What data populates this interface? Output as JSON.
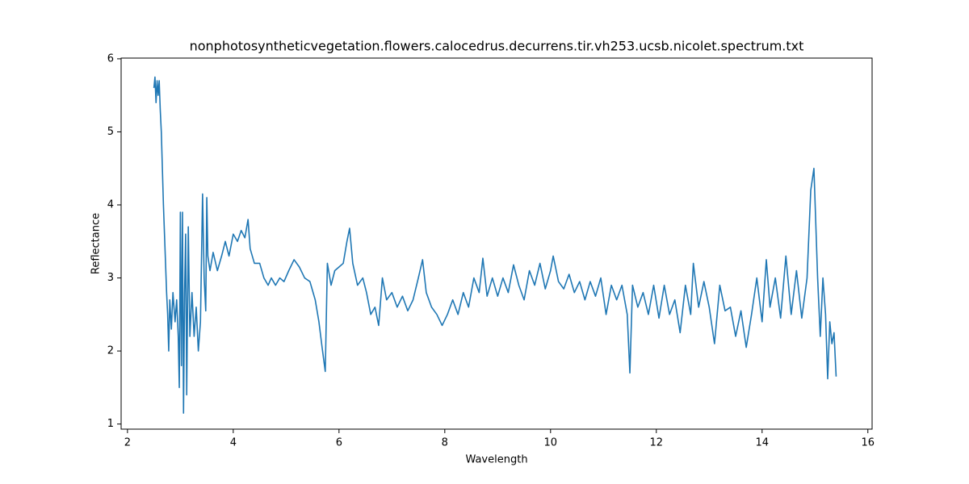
{
  "chart_data": {
    "type": "line",
    "title": "nonphotosyntheticvegetation.flowers.calocedrus.decurrens.tir.vh253.ucsb.nicolet.spectrum.txt",
    "xlabel": "Wavelength",
    "ylabel": "Reflectance",
    "xlim": [
      1.88,
      16.08
    ],
    "ylim": [
      0.93,
      6.01
    ],
    "xticks": [
      2,
      4,
      6,
      8,
      10,
      12,
      14,
      16
    ],
    "yticks": [
      1,
      2,
      3,
      4,
      5,
      6
    ],
    "grid": false,
    "series": [
      {
        "color": "#1f77b4",
        "x": [
          2.5,
          2.52,
          2.54,
          2.56,
          2.58,
          2.6,
          2.62,
          2.64,
          2.66,
          2.68,
          2.7,
          2.72,
          2.74,
          2.76,
          2.78,
          2.8,
          2.83,
          2.86,
          2.9,
          2.93,
          2.96,
          2.98,
          3.0,
          3.02,
          3.04,
          3.06,
          3.08,
          3.1,
          3.12,
          3.15,
          3.18,
          3.22,
          3.26,
          3.3,
          3.34,
          3.38,
          3.42,
          3.45,
          3.48,
          3.5,
          3.52,
          3.56,
          3.62,
          3.7,
          3.78,
          3.85,
          3.92,
          4.0,
          4.08,
          4.15,
          4.22,
          4.28,
          4.32,
          4.4,
          4.5,
          4.58,
          4.66,
          4.72,
          4.8,
          4.88,
          4.96,
          5.05,
          5.15,
          5.25,
          5.35,
          5.45,
          5.55,
          5.62,
          5.68,
          5.74,
          5.78,
          5.85,
          5.92,
          6.0,
          6.08,
          6.15,
          6.2,
          6.26,
          6.35,
          6.45,
          6.52,
          6.6,
          6.68,
          6.75,
          6.82,
          6.9,
          7.0,
          7.1,
          7.2,
          7.3,
          7.4,
          7.5,
          7.58,
          7.65,
          7.75,
          7.85,
          7.95,
          8.05,
          8.15,
          8.25,
          8.35,
          8.45,
          8.55,
          8.65,
          8.72,
          8.8,
          8.9,
          9.0,
          9.1,
          9.2,
          9.3,
          9.4,
          9.5,
          9.6,
          9.7,
          9.8,
          9.9,
          10.0,
          10.05,
          10.15,
          10.25,
          10.35,
          10.45,
          10.55,
          10.65,
          10.75,
          10.85,
          10.95,
          11.05,
          11.15,
          11.25,
          11.35,
          11.45,
          11.5,
          11.55,
          11.65,
          11.75,
          11.85,
          11.95,
          12.05,
          12.15,
          12.25,
          12.35,
          12.45,
          12.55,
          12.65,
          12.7,
          12.8,
          12.9,
          13.0,
          13.1,
          13.2,
          13.3,
          13.4,
          13.5,
          13.6,
          13.7,
          13.8,
          13.9,
          14.0,
          14.08,
          14.15,
          14.25,
          14.35,
          14.45,
          14.55,
          14.65,
          14.75,
          14.85,
          14.92,
          14.98,
          15.05,
          15.1,
          15.15,
          15.2,
          15.24,
          15.28,
          15.32,
          15.36,
          15.4
        ],
        "values": [
          5.6,
          5.75,
          5.4,
          5.7,
          5.5,
          5.7,
          5.3,
          5.0,
          4.5,
          4.0,
          3.6,
          3.2,
          2.8,
          2.5,
          2.0,
          2.7,
          2.3,
          2.8,
          2.4,
          2.7,
          2.2,
          1.5,
          3.9,
          1.8,
          3.9,
          1.15,
          2.8,
          3.6,
          1.4,
          3.7,
          2.2,
          2.8,
          2.2,
          2.6,
          2.0,
          2.4,
          4.15,
          3.0,
          2.55,
          4.1,
          3.3,
          3.1,
          3.35,
          3.1,
          3.3,
          3.5,
          3.3,
          3.6,
          3.5,
          3.65,
          3.55,
          3.8,
          3.4,
          3.2,
          3.2,
          3.0,
          2.9,
          3.0,
          2.9,
          3.0,
          2.95,
          3.1,
          3.25,
          3.15,
          3.0,
          2.95,
          2.7,
          2.4,
          2.05,
          1.72,
          3.2,
          2.9,
          3.1,
          3.15,
          3.2,
          3.5,
          3.68,
          3.2,
          2.9,
          3.0,
          2.8,
          2.5,
          2.6,
          2.35,
          3.0,
          2.7,
          2.8,
          2.6,
          2.75,
          2.55,
          2.7,
          3.0,
          3.25,
          2.8,
          2.6,
          2.5,
          2.35,
          2.5,
          2.7,
          2.5,
          2.8,
          2.6,
          3.0,
          2.8,
          3.27,
          2.75,
          3.0,
          2.75,
          3.0,
          2.8,
          3.18,
          2.9,
          2.7,
          3.1,
          2.9,
          3.2,
          2.85,
          3.1,
          3.3,
          2.95,
          2.85,
          3.05,
          2.8,
          2.95,
          2.7,
          2.95,
          2.75,
          3.0,
          2.5,
          2.9,
          2.7,
          2.9,
          2.5,
          1.7,
          2.9,
          2.6,
          2.8,
          2.5,
          2.9,
          2.45,
          2.9,
          2.5,
          2.7,
          2.25,
          2.9,
          2.5,
          3.2,
          2.6,
          2.95,
          2.6,
          2.1,
          2.9,
          2.55,
          2.6,
          2.2,
          2.55,
          2.05,
          2.5,
          3.0,
          2.4,
          3.25,
          2.6,
          3.0,
          2.45,
          3.3,
          2.5,
          3.1,
          2.45,
          3.0,
          4.2,
          4.5,
          3.0,
          2.2,
          3.0,
          2.5,
          1.62,
          2.4,
          2.1,
          2.25,
          1.65
        ]
      }
    ]
  }
}
